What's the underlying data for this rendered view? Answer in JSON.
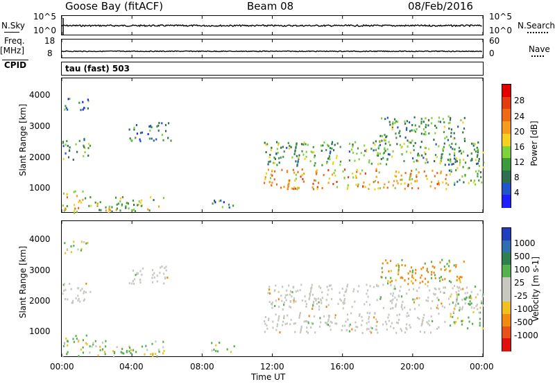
{
  "header": {
    "station": "Goose Bay (fitACF)",
    "beam": "Beam 08",
    "date": "08/Feb/2016"
  },
  "left_labels": {
    "nsky": "N.Sky",
    "nsky_top": "10^5",
    "nsky_bottom": "10^0",
    "freq_line1": "Freq.",
    "freq_line2": "[MHz]",
    "freq_top": "18",
    "freq_bottom": "8",
    "cpid": "CPID",
    "cpid_value": "tau (fast) 503"
  },
  "right_labels": {
    "nsearch": "N.Search",
    "nsearch_top": "10^5",
    "nsearch_bottom": "10^0",
    "nave": "Nave",
    "nave_top": "60",
    "nave_bottom": "0"
  },
  "colors": {
    "power_scale": [
      "#1e1eff",
      "#2255c8",
      "#2f6f4f",
      "#3c9a3c",
      "#7fd23a",
      "#f2d21e",
      "#f59b1e",
      "#ef6a14",
      "#e33c10",
      "#e00000"
    ],
    "velocity_scale": [
      "#1f3fbf",
      "#2f6faf",
      "#2f7f4f",
      "#55b04f",
      "#c8c8c0",
      "#c8c8c0",
      "#f0c020",
      "#f08a10",
      "#e8501c",
      "#e01010"
    ],
    "ground_scatter": "#c8c8c0"
  },
  "chart_data": [
    {
      "type": "line",
      "name": "N.Sky / N.Search",
      "xlabel": "",
      "x": [
        "00:00",
        "02:00",
        "04:00",
        "06:00",
        "08:00",
        "10:00",
        "12:00",
        "14:00",
        "16:00",
        "18:00",
        "20:00",
        "22:00",
        "24:00"
      ],
      "values": [
        3.5,
        3.6,
        3.6,
        3.5,
        3.6,
        3.6,
        3.6,
        3.6,
        3.6,
        3.6,
        3.6,
        3.6,
        3.6
      ],
      "ylim": [
        0,
        5
      ]
    },
    {
      "type": "line",
      "name": "Freq / Nave",
      "x": [
        "00:00",
        "02:00",
        "04:00",
        "06:00",
        "08:00",
        "10:00",
        "12:00",
        "14:00",
        "16:00",
        "18:00",
        "20:00",
        "22:00",
        "24:00"
      ],
      "values": [
        10.1,
        10.1,
        10.1,
        10.1,
        10.1,
        10.1,
        10.1,
        10.1,
        10.1,
        10.1,
        10.1,
        10.1,
        10.1
      ],
      "ylim": [
        8,
        18
      ]
    },
    {
      "type": "heatmap",
      "title": "Power",
      "xlabel": "",
      "ylabel": "Slant Range [km]",
      "colorbar_label": "Power [dB]",
      "colorbar_ticks": [
        "4",
        "8",
        "12",
        "16",
        "20",
        "24",
        "28"
      ],
      "yticks": [
        "1000",
        "2000",
        "3000",
        "4000"
      ],
      "ylim": [
        180,
        4500
      ],
      "xlim": [
        0,
        24
      ],
      "regions": [
        {
          "t0": 0.0,
          "t1": 1.4,
          "r0": 180,
          "r1": 900,
          "level": 5
        },
        {
          "t0": 0.0,
          "t1": 1.6,
          "r0": 1900,
          "r1": 2600,
          "level": 3
        },
        {
          "t0": 0.0,
          "t1": 1.5,
          "r0": 3500,
          "r1": 3900,
          "level": 2
        },
        {
          "t0": 1.5,
          "t1": 5.8,
          "r0": 200,
          "r1": 700,
          "level": 4
        },
        {
          "t0": 3.8,
          "t1": 6.2,
          "r0": 2500,
          "r1": 3100,
          "level": 2
        },
        {
          "t0": 8.5,
          "t1": 9.8,
          "r0": 350,
          "r1": 650,
          "level": 2
        },
        {
          "t0": 11.5,
          "t1": 22.0,
          "r0": 950,
          "r1": 1600,
          "level": 6
        },
        {
          "t0": 11.5,
          "t1": 24.0,
          "r0": 1700,
          "r1": 2500,
          "level": 3
        },
        {
          "t0": 18.0,
          "t1": 23.0,
          "r0": 2500,
          "r1": 3300,
          "level": 3
        },
        {
          "t0": 22.0,
          "t1": 24.0,
          "r0": 1100,
          "r1": 2200,
          "level": 3
        }
      ]
    },
    {
      "type": "heatmap",
      "title": "Velocity",
      "xlabel": "Time UT",
      "ylabel": "Slant Range [km]",
      "colorbar_label": "Velocity [m s-1]",
      "colorbar_ticks": [
        "1000",
        "500",
        "100",
        "25",
        "-25",
        "-100",
        "-500",
        "-1000"
      ],
      "yticks": [
        "1000",
        "2000",
        "3000",
        "4000"
      ],
      "xticks": [
        "00:00",
        "04:00",
        "08:00",
        "12:00",
        "16:00",
        "20:00",
        "00:00"
      ],
      "ylim": [
        180,
        4500
      ],
      "xlim": [
        0,
        24
      ]
    }
  ]
}
